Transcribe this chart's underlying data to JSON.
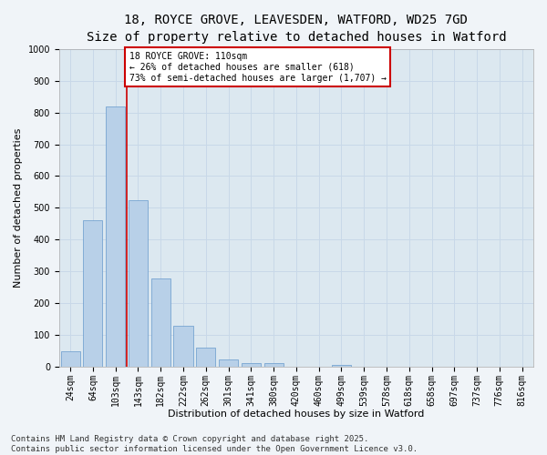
{
  "title_line1": "18, ROYCE GROVE, LEAVESDEN, WATFORD, WD25 7GD",
  "title_line2": "Size of property relative to detached houses in Watford",
  "xlabel": "Distribution of detached houses by size in Watford",
  "ylabel": "Number of detached properties",
  "bar_labels": [
    "24sqm",
    "64sqm",
    "103sqm",
    "143sqm",
    "182sqm",
    "222sqm",
    "262sqm",
    "301sqm",
    "341sqm",
    "380sqm",
    "420sqm",
    "460sqm",
    "499sqm",
    "539sqm",
    "578sqm",
    "618sqm",
    "658sqm",
    "697sqm",
    "737sqm",
    "776sqm",
    "816sqm"
  ],
  "bar_values": [
    48,
    462,
    818,
    524,
    279,
    128,
    59,
    22,
    10,
    10,
    0,
    0,
    5,
    0,
    0,
    0,
    0,
    0,
    0,
    0,
    0
  ],
  "bar_color": "#b8d0e8",
  "bar_edge_color": "#6699cc",
  "property_line_color": "#cc0000",
  "property_line_x": 2.5,
  "annotation_text": "18 ROYCE GROVE: 110sqm\n← 26% of detached houses are smaller (618)\n73% of semi-detached houses are larger (1,707) →",
  "annotation_box_color": "#ffffff",
  "annotation_box_edge": "#cc0000",
  "ylim": [
    0,
    1000
  ],
  "yticks": [
    0,
    100,
    200,
    300,
    400,
    500,
    600,
    700,
    800,
    900,
    1000
  ],
  "grid_color": "#c8d8e8",
  "bg_color": "#dce8f0",
  "fig_bg_color": "#f0f4f8",
  "footer_text": "Contains HM Land Registry data © Crown copyright and database right 2025.\nContains public sector information licensed under the Open Government Licence v3.0.",
  "title_fontsize": 10,
  "subtitle_fontsize": 9,
  "axis_label_fontsize": 8,
  "tick_fontsize": 7,
  "annotation_fontsize": 7,
  "footer_fontsize": 6.5
}
